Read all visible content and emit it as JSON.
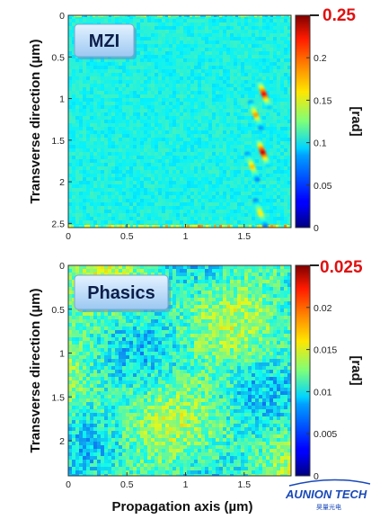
{
  "chart_data": [
    {
      "type": "heatmap",
      "title": "MZI",
      "xlabel": "",
      "ylabel": "Transverse direction (µm)",
      "x_ticks": [
        "0",
        "0.5",
        "1",
        "1.5"
      ],
      "x_tick_values": [
        0,
        0.5,
        1,
        1.5
      ],
      "xlim": [
        0,
        1.9
      ],
      "y_ticks": [
        "0",
        "0.5",
        "1",
        "1.5",
        "2",
        "2.5"
      ],
      "y_tick_values": [
        0,
        0.5,
        1,
        1.5,
        2,
        2.5
      ],
      "ylim": [
        0,
        2.55
      ],
      "y_reversed": true,
      "colorbar": {
        "unit": "[rad]",
        "ticks": [
          "0",
          "0.05",
          "0.1",
          "0.15",
          "0.2"
        ],
        "tick_values": [
          0,
          0.05,
          0.1,
          0.15,
          0.2
        ],
        "max_label": "0.25",
        "range": [
          0,
          0.25
        ],
        "colormap": "jet"
      },
      "background_level": 0.1,
      "hotspots": [
        {
          "x": 1.67,
          "y": 0.95,
          "value": 0.22
        },
        {
          "x": 1.6,
          "y": 1.2,
          "value": 0.18
        },
        {
          "x": 1.66,
          "y": 1.65,
          "value": 0.23
        },
        {
          "x": 1.57,
          "y": 1.82,
          "value": 0.17
        },
        {
          "x": 1.64,
          "y": 2.38,
          "value": 0.16
        }
      ]
    },
    {
      "type": "heatmap",
      "title": "Phasics",
      "xlabel": "Propagation axis (µm)",
      "ylabel": "Transverse direction (µm)",
      "x_ticks": [
        "0",
        "0.5",
        "1",
        "1.5"
      ],
      "x_tick_values": [
        0,
        0.5,
        1,
        1.5
      ],
      "xlim": [
        0,
        1.9
      ],
      "y_ticks": [
        "0",
        "0.5",
        "1",
        "1.5",
        "2"
      ],
      "y_tick_values": [
        0,
        0.5,
        1,
        1.5,
        2
      ],
      "ylim": [
        0,
        2.4
      ],
      "y_reversed": true,
      "colorbar": {
        "unit": "[rad]",
        "ticks": [
          "0",
          "0.005",
          "0.01",
          "0.015",
          "0.02"
        ],
        "tick_values": [
          0,
          0.005,
          0.01,
          0.015,
          0.02
        ],
        "max_label": "0.025",
        "range": [
          0,
          0.025
        ],
        "colormap": "jet"
      },
      "background_level": 0.011,
      "hotspots": []
    }
  ],
  "watermark": {
    "brand": "AUNION TECH",
    "sub": "昊量光电"
  }
}
